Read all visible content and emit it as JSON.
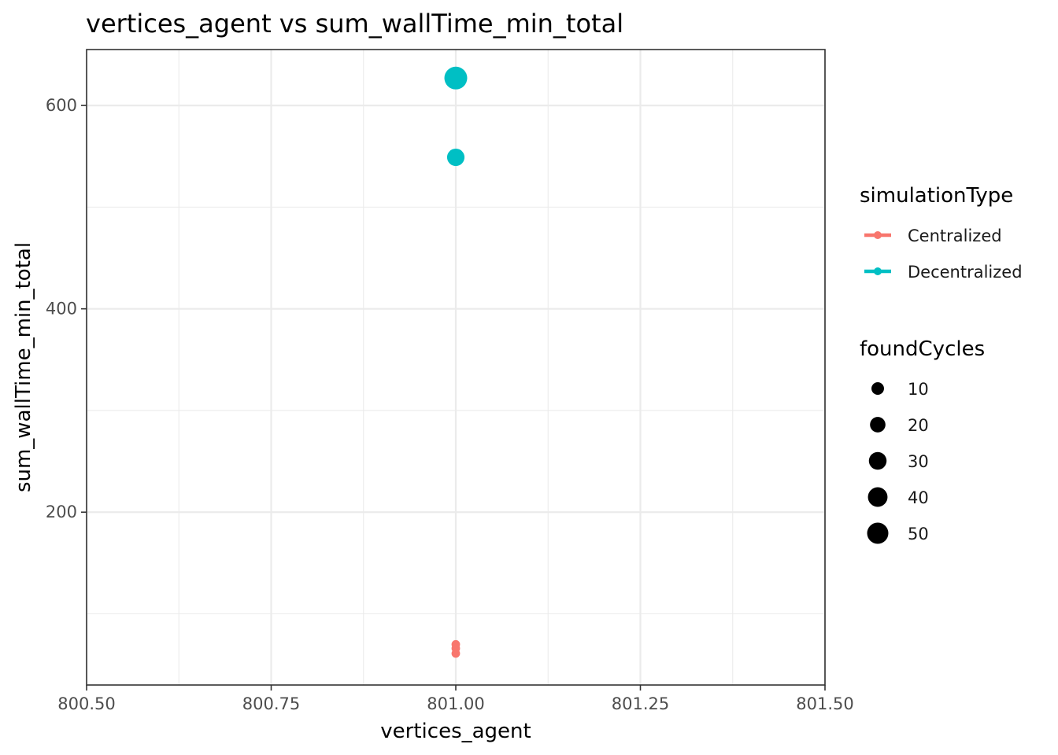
{
  "chart_data": {
    "type": "scatter",
    "title": "vertices_agent  vs  sum_wallTime_min_total",
    "xlabel": "vertices_agent",
    "ylabel": "sum_wallTime_min_total",
    "xlim": [
      800.5,
      801.5
    ],
    "ylim": [
      30,
      655
    ],
    "x_ticks": [
      800.5,
      800.75,
      801.0,
      801.25,
      801.5
    ],
    "x_tick_labels": [
      "800.50",
      "800.75",
      "801.00",
      "801.25",
      "801.50"
    ],
    "y_ticks": [
      200,
      400,
      600
    ],
    "y_tick_labels": [
      "200",
      "400",
      "600"
    ],
    "y_minor_ticks": [
      100,
      300,
      500
    ],
    "grid": true,
    "legend_position": "right",
    "color_legend": {
      "title": "simulationType",
      "entries": [
        {
          "label": "Centralized",
          "color": "#F8766D"
        },
        {
          "label": "Decentralized",
          "color": "#00BFC4"
        }
      ]
    },
    "size_legend": {
      "title": "foundCycles",
      "entries": [
        "10",
        "20",
        "30",
        "40",
        "50"
      ],
      "values": [
        10,
        20,
        30,
        40,
        50
      ]
    },
    "series": [
      {
        "name": "Centralized",
        "color": "#F8766D",
        "points": [
          {
            "x": 801.0,
            "y": 70,
            "size": 1
          },
          {
            "x": 801.0,
            "y": 66,
            "size": 1
          },
          {
            "x": 801.0,
            "y": 61,
            "size": 1
          }
        ]
      },
      {
        "name": "Decentralized",
        "color": "#00BFC4",
        "points": [
          {
            "x": 801.0,
            "y": 627,
            "size": 55
          },
          {
            "x": 801.0,
            "y": 549,
            "size": 25
          }
        ]
      }
    ]
  }
}
